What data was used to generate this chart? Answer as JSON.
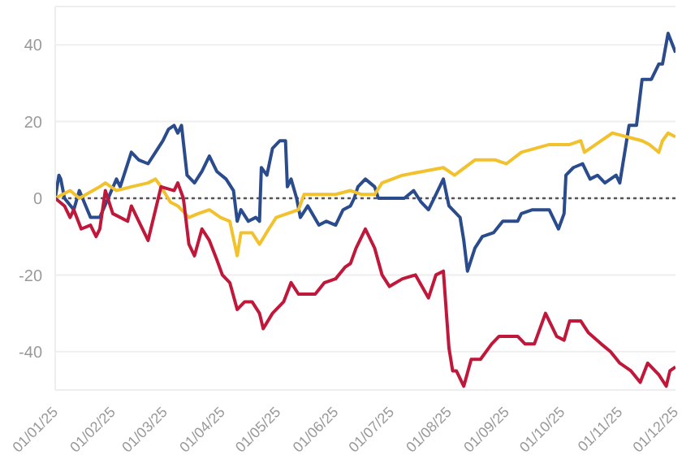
{
  "chart_data": {
    "type": "line",
    "xlim": [
      "2025-01-01",
      "2025-12-01"
    ],
    "xticks": [
      {
        "value": "2025-01-01",
        "label": "01/01/25"
      },
      {
        "value": "2025-02-01",
        "label": "01/02/25"
      },
      {
        "value": "2025-03-01",
        "label": "01/03/25"
      },
      {
        "value": "2025-04-01",
        "label": "01/04/25"
      },
      {
        "value": "2025-05-01",
        "label": "01/05/25"
      },
      {
        "value": "2025-06-01",
        "label": "01/06/25"
      },
      {
        "value": "2025-07-01",
        "label": "01/07/25"
      },
      {
        "value": "2025-08-01",
        "label": "01/08/25"
      },
      {
        "value": "2025-09-01",
        "label": "01/09/25"
      },
      {
        "value": "2025-10-01",
        "label": "01/10/25"
      },
      {
        "value": "2025-11-01",
        "label": "01/11/25"
      },
      {
        "value": "2025-12-01",
        "label": "01/12/25"
      }
    ],
    "ylim": [
      -50,
      50
    ],
    "yticks": [
      -40,
      -20,
      0,
      20,
      40
    ],
    "grid": "y",
    "marker": "none",
    "line_style": "solid",
    "ref_lines": [
      {
        "axis": "y",
        "value": 0,
        "color": "#555555",
        "line_style": "dotted"
      }
    ],
    "series": [
      {
        "color": "#2b4c8c",
        "x": [
          "2025-01-01",
          "2025-01-03",
          "2025-01-04",
          "2025-01-06",
          "2025-01-11",
          "2025-01-14",
          "2025-01-20",
          "2025-01-25",
          "2025-02-03",
          "2025-02-05",
          "2025-02-11",
          "2025-02-15",
          "2025-02-20",
          "2025-02-24",
          "2025-02-28",
          "2025-03-03",
          "2025-03-06",
          "2025-03-08",
          "2025-03-10",
          "2025-03-13",
          "2025-03-17",
          "2025-03-21",
          "2025-03-25",
          "2025-03-29",
          "2025-04-03",
          "2025-04-07",
          "2025-04-09",
          "2025-04-11",
          "2025-04-15",
          "2025-04-19",
          "2025-04-21",
          "2025-04-22",
          "2025-04-25",
          "2025-04-28",
          "2025-05-02",
          "2025-05-05",
          "2025-05-06",
          "2025-05-08",
          "2025-05-11",
          "2025-05-13",
          "2025-05-17",
          "2025-05-23",
          "2025-05-27",
          "2025-06-01",
          "2025-06-05",
          "2025-06-09",
          "2025-06-11",
          "2025-06-13",
          "2025-06-17",
          "2025-06-22",
          "2025-06-24",
          "2025-06-30",
          "2025-07-08",
          "2025-07-13",
          "2025-07-17",
          "2025-07-21",
          "2025-07-25",
          "2025-07-29",
          "2025-08-01",
          "2025-08-07",
          "2025-08-09",
          "2025-08-11",
          "2025-08-15",
          "2025-08-19",
          "2025-08-25",
          "2025-08-30",
          "2025-09-07",
          "2025-09-09",
          "2025-09-15",
          "2025-09-24",
          "2025-09-29",
          "2025-10-02",
          "2025-10-03",
          "2025-10-07",
          "2025-10-12",
          "2025-10-16",
          "2025-10-20",
          "2025-10-24",
          "2025-10-30",
          "2025-11-01",
          "2025-11-06",
          "2025-11-10",
          "2025-11-13",
          "2025-11-18",
          "2025-11-22",
          "2025-11-24",
          "2025-11-27",
          "2025-12-01"
        ],
        "values": [
          0,
          6,
          5,
          0,
          -3,
          2,
          -5,
          -5,
          5,
          3,
          12,
          10,
          9,
          12,
          15,
          18,
          19,
          17,
          19,
          6,
          4,
          7,
          11,
          7,
          5,
          2,
          -6,
          -3,
          -6,
          -5,
          -6,
          8,
          6,
          13,
          15,
          15,
          3,
          5,
          0,
          -5,
          -2,
          -7,
          -6,
          -7,
          -3,
          -2,
          0,
          3,
          5,
          3,
          0,
          0,
          0,
          2,
          -1,
          -3,
          1,
          5,
          -2,
          -5,
          -11,
          -19,
          -13,
          -10,
          -9,
          -6,
          -6,
          -4,
          -3,
          -3,
          -8,
          -4,
          6,
          8,
          9,
          5,
          6,
          4,
          6,
          4,
          19,
          19,
          31,
          31,
          35,
          35,
          43,
          38
        ]
      },
      {
        "color": "#f2c12e",
        "x": [
          "2025-01-01",
          "2025-01-09",
          "2025-01-14",
          "2025-01-25",
          "2025-01-28",
          "2025-02-03",
          "2025-02-11",
          "2025-02-20",
          "2025-02-24",
          "2025-02-27",
          "2025-03-04",
          "2025-03-08",
          "2025-03-14",
          "2025-03-19",
          "2025-03-25",
          "2025-03-31",
          "2025-04-05",
          "2025-04-09",
          "2025-04-11",
          "2025-04-17",
          "2025-04-21",
          "2025-04-26",
          "2025-04-30",
          "2025-05-06",
          "2025-05-12",
          "2025-05-15",
          "2025-05-23",
          "2025-06-01",
          "2025-06-09",
          "2025-06-15",
          "2025-06-22",
          "2025-06-26",
          "2025-07-07",
          "2025-07-18",
          "2025-07-29",
          "2025-08-04",
          "2025-08-15",
          "2025-08-26",
          "2025-09-01",
          "2025-09-09",
          "2025-09-24",
          "2025-10-05",
          "2025-10-11",
          "2025-10-13",
          "2025-10-22",
          "2025-10-28",
          "2025-11-05",
          "2025-11-13",
          "2025-11-17",
          "2025-11-22",
          "2025-11-24",
          "2025-11-27",
          "2025-12-01"
        ],
        "values": [
          0,
          2,
          0,
          3,
          4,
          2,
          3,
          4,
          5,
          3,
          -1,
          -2,
          -5,
          -4,
          -3,
          -5,
          -6,
          -15,
          -9,
          -9,
          -12,
          -8,
          -5,
          -4,
          -3,
          1,
          1,
          1,
          2,
          1,
          1,
          4,
          6,
          7,
          8,
          6,
          10,
          10,
          9,
          12,
          14,
          14,
          15,
          12,
          15,
          17,
          16,
          15,
          14,
          12,
          15,
          17,
          16
        ]
      },
      {
        "color": "#c0183a",
        "x": [
          "2025-01-01",
          "2025-01-06",
          "2025-01-09",
          "2025-01-11",
          "2025-01-15",
          "2025-01-20",
          "2025-01-23",
          "2025-01-25",
          "2025-01-28",
          "2025-02-01",
          "2025-02-09",
          "2025-02-11",
          "2025-02-15",
          "2025-02-20",
          "2025-02-22",
          "2025-02-27",
          "2025-03-06",
          "2025-03-08",
          "2025-03-11",
          "2025-03-14",
          "2025-03-17",
          "2025-03-21",
          "2025-03-25",
          "2025-03-29",
          "2025-04-01",
          "2025-04-05",
          "2025-04-09",
          "2025-04-13",
          "2025-04-17",
          "2025-04-21",
          "2025-04-23",
          "2025-04-28",
          "2025-05-04",
          "2025-05-08",
          "2025-05-12",
          "2025-05-17",
          "2025-05-21",
          "2025-05-26",
          "2025-06-01",
          "2025-06-06",
          "2025-06-09",
          "2025-06-12",
          "2025-06-17",
          "2025-06-22",
          "2025-06-26",
          "2025-06-30",
          "2025-07-07",
          "2025-07-14",
          "2025-07-21",
          "2025-07-25",
          "2025-07-29",
          "2025-08-01",
          "2025-08-03",
          "2025-08-05",
          "2025-08-09",
          "2025-08-13",
          "2025-08-18",
          "2025-08-24",
          "2025-08-28",
          "2025-09-07",
          "2025-09-11",
          "2025-09-16",
          "2025-09-22",
          "2025-09-28",
          "2025-10-02",
          "2025-10-05",
          "2025-10-11",
          "2025-10-15",
          "2025-10-22",
          "2025-10-27",
          "2025-11-01",
          "2025-11-07",
          "2025-11-12",
          "2025-11-16",
          "2025-11-22",
          "2025-11-26",
          "2025-11-28",
          "2025-12-01"
        ],
        "values": [
          0,
          -2,
          -5,
          -3,
          -8,
          -7,
          -10,
          -8,
          2,
          -4,
          -6,
          -2,
          -6,
          -11,
          -7,
          3,
          2,
          4,
          0,
          -12,
          -15,
          -8,
          -11,
          -16,
          -20,
          -22,
          -29,
          -27,
          -27,
          -30,
          -34,
          -30,
          -27,
          -22,
          -25,
          -25,
          -25,
          -22,
          -21,
          -18,
          -17,
          -13,
          -8,
          -13,
          -20,
          -23,
          -21,
          -20,
          -26,
          -20,
          -19,
          -39,
          -45,
          -45,
          -49,
          -42,
          -42,
          -38,
          -36,
          -36,
          -38,
          -38,
          -30,
          -36,
          -37,
          -32,
          -32,
          -35,
          -38,
          -40,
          -43,
          -45,
          -48,
          -43,
          -46,
          -49,
          -45,
          -44
        ]
      }
    ]
  }
}
